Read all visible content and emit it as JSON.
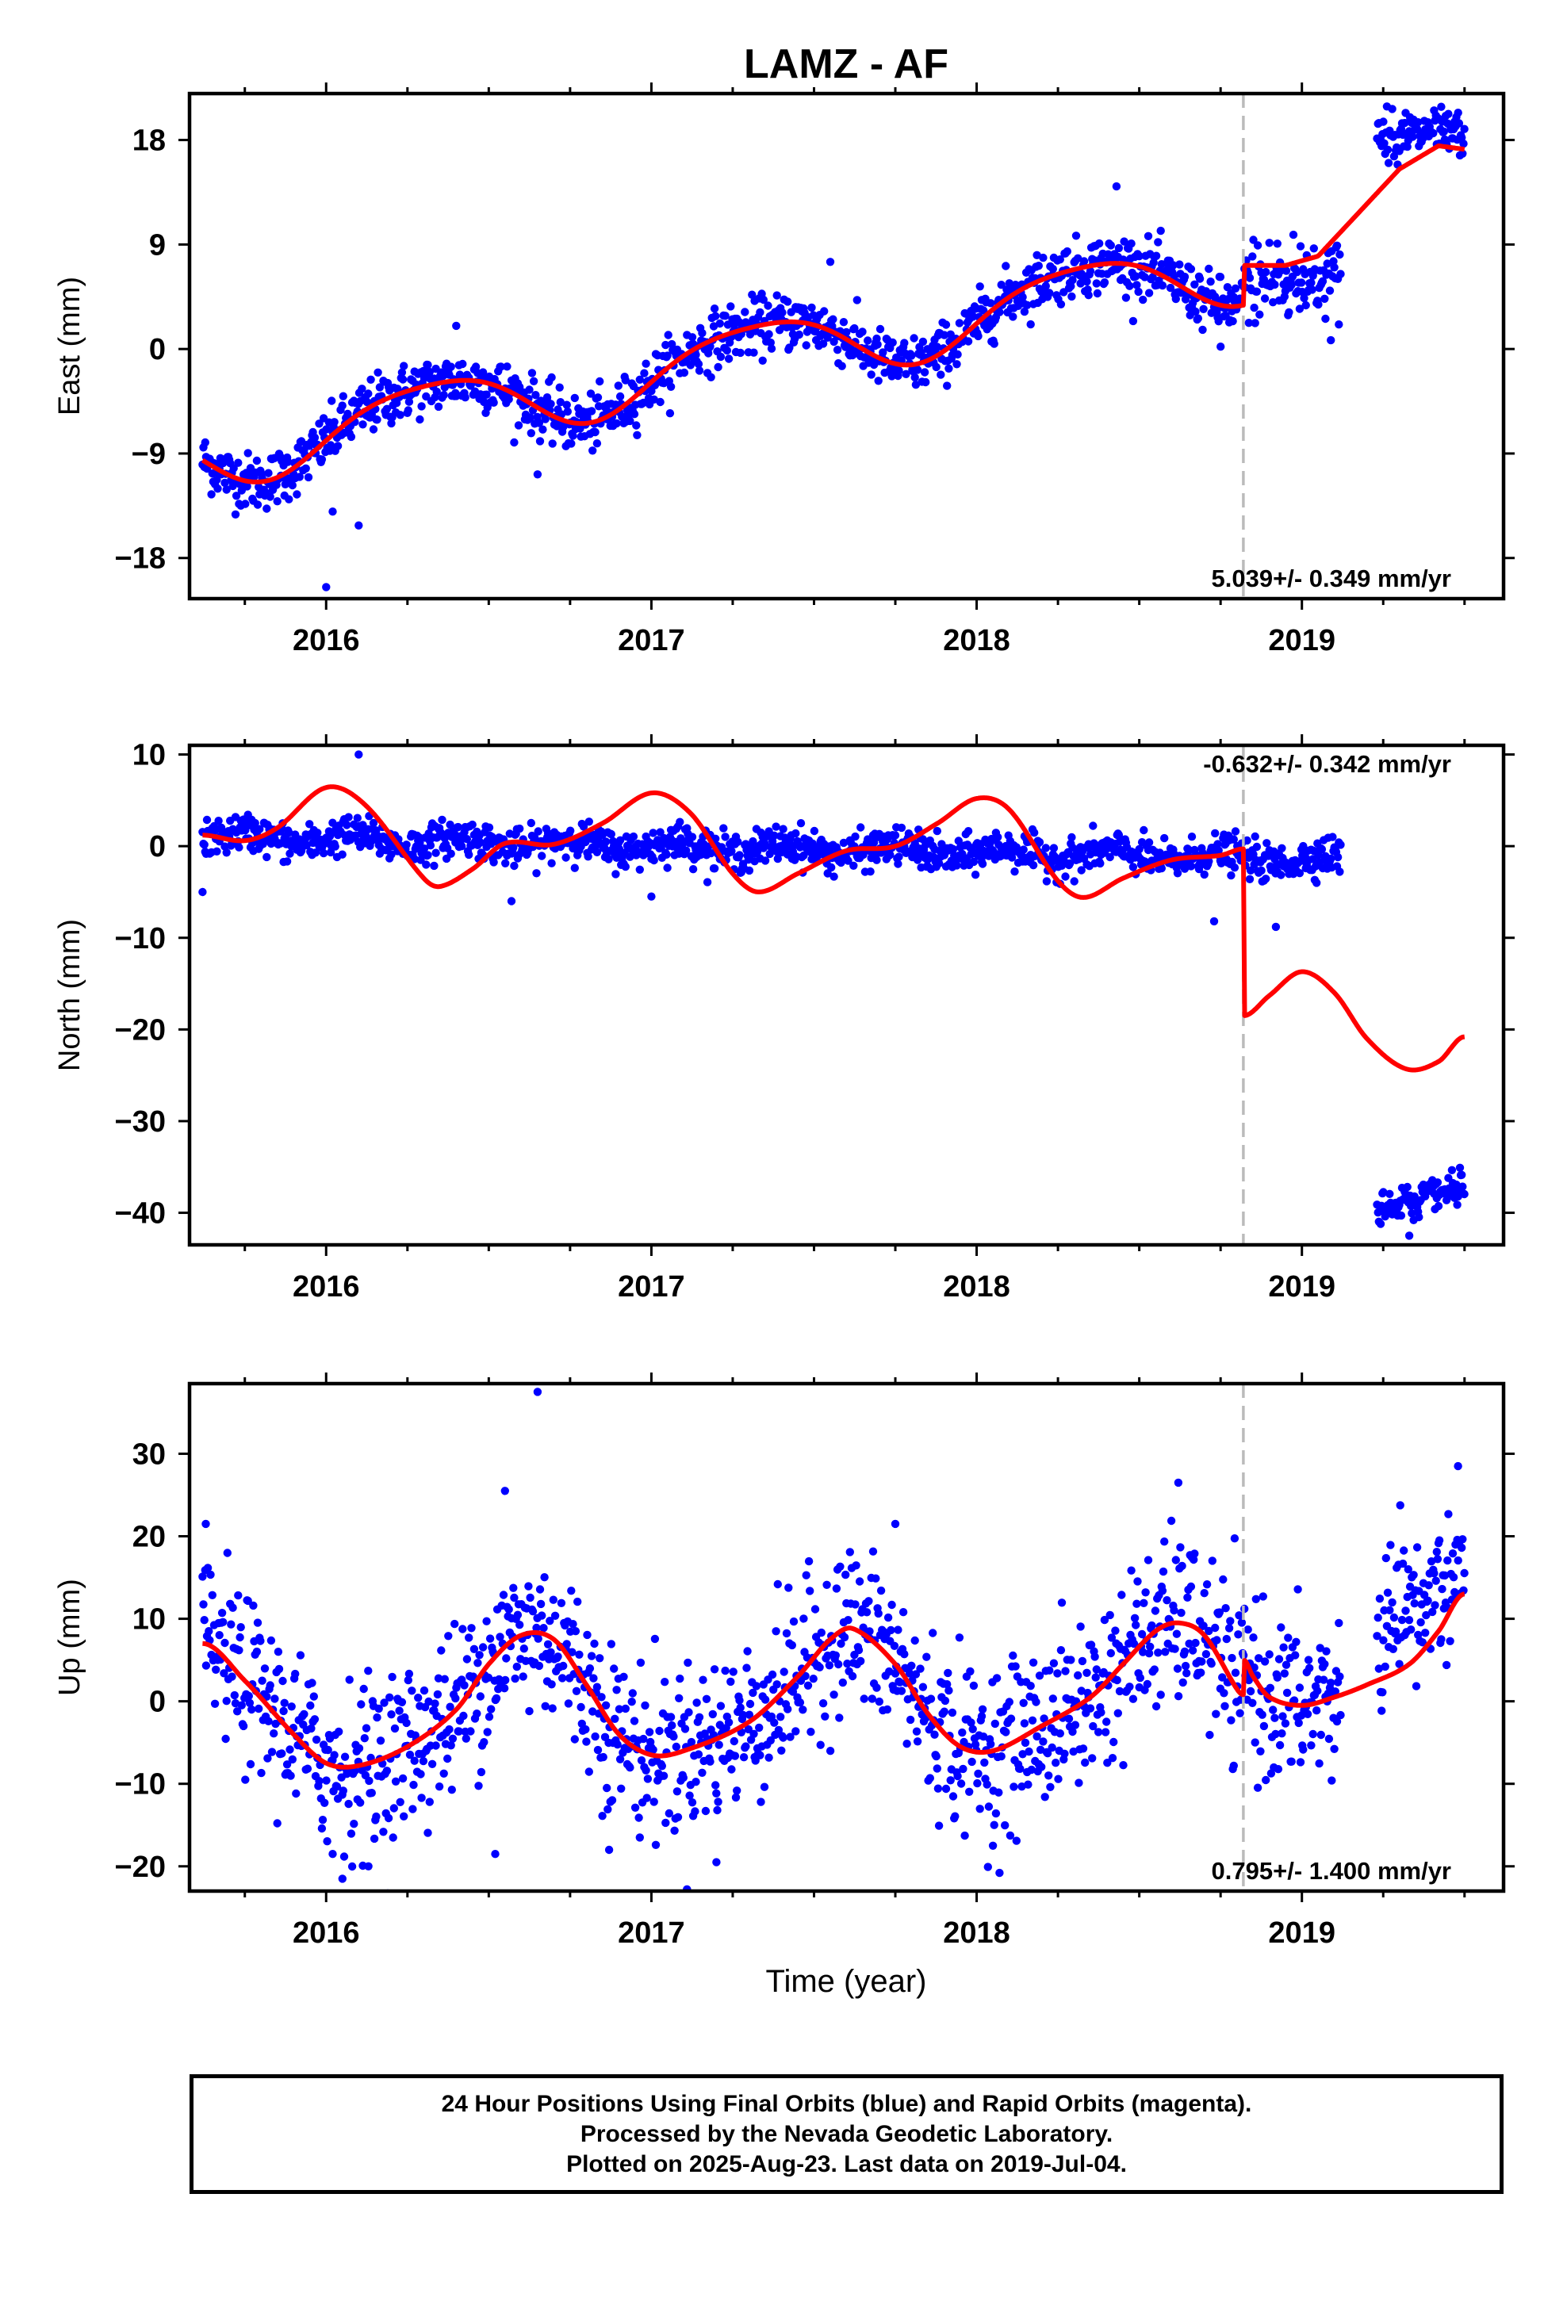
{
  "title": "LAMZ - AF",
  "xlabel": "Time (year)",
  "x_ticks": [
    "2016",
    "2017",
    "2018",
    "2019"
  ],
  "footer": {
    "line1": "24 Hour Positions Using Final Orbits (blue) and Rapid Orbits (magenta).",
    "line2": "Processed by the Nevada Geodetic Laboratory.",
    "line3": "Plotted on 2025-Aug-23. Last data on 2019-Jul-04."
  },
  "colors": {
    "points": "#0000ff",
    "model": "#ff0000",
    "offset_line": "#bbbbbb",
    "axes": "#000000"
  },
  "chart_data": [
    {
      "type": "scatter",
      "name": "east",
      "ylabel": "East (mm)",
      "y_ticks": [
        -18,
        -9,
        0,
        9,
        18
      ],
      "xlim": [
        2015.58,
        2019.62
      ],
      "ylim": [
        -21.5,
        22.0
      ],
      "rate_text": "5.039+/- 0.349 mm/yr",
      "rate_position": "bottom-right",
      "offset_epoch": 2018.82,
      "start": 2015.62,
      "end": 2019.5,
      "gap": [
        2019.12,
        2019.23
      ],
      "model": {
        "trend_start": -9.0,
        "rate": 5.039,
        "ann_c": -1.2,
        "ann_s": 2.6,
        "semi_c": 0.4,
        "semi_s": 0.3,
        "offset": 3.0,
        "post_offset_adjust": [
          [
            2018.82,
            7.2
          ],
          [
            2018.95,
            7.2
          ],
          [
            2019.05,
            8.0
          ],
          [
            2019.15,
            11.0
          ],
          [
            2019.3,
            15.5
          ],
          [
            2019.42,
            17.5
          ],
          [
            2019.5,
            17.2
          ]
        ]
      },
      "noise": 1.2,
      "outliers": [
        [
          2016.0,
          -20.5
        ],
        [
          2016.1,
          -15.2
        ],
        [
          2016.02,
          -14.0
        ],
        [
          2016.4,
          2.0
        ],
        [
          2018.43,
          14.0
        ],
        [
          2017.55,
          7.5
        ],
        [
          2016.65,
          -10.8
        ],
        [
          2018.75,
          0.2
        ]
      ]
    },
    {
      "type": "scatter",
      "name": "north",
      "ylabel": "North (mm)",
      "y_ticks": [
        -40,
        -30,
        -20,
        -10,
        0,
        10
      ],
      "xlim": [
        2015.58,
        2019.62
      ],
      "ylim": [
        -43.5,
        11.0
      ],
      "rate_text": "-0.632+/- 0.342 mm/yr",
      "rate_position": "top-right",
      "offset_epoch": 2018.82,
      "start": 2015.62,
      "end": 2019.5,
      "gap": [
        2019.12,
        2019.23
      ],
      "model_points": [
        [
          2015.62,
          1.2
        ],
        [
          2015.75,
          0.6
        ],
        [
          2015.85,
          2.0
        ],
        [
          2016.0,
          6.4
        ],
        [
          2016.12,
          4.5
        ],
        [
          2016.3,
          -3.5
        ],
        [
          2016.35,
          -4.4
        ],
        [
          2016.45,
          -2.5
        ],
        [
          2016.55,
          0.3
        ],
        [
          2016.7,
          0.2
        ],
        [
          2016.85,
          2.5
        ],
        [
          2017.0,
          5.8
        ],
        [
          2017.12,
          3.6
        ],
        [
          2017.25,
          -3.0
        ],
        [
          2017.33,
          -5.0
        ],
        [
          2017.45,
          -3.0
        ],
        [
          2017.6,
          -0.5
        ],
        [
          2017.75,
          0.0
        ],
        [
          2017.88,
          2.5
        ],
        [
          2018.0,
          5.2
        ],
        [
          2018.1,
          4.0
        ],
        [
          2018.25,
          -3.8
        ],
        [
          2018.33,
          -5.6
        ],
        [
          2018.45,
          -3.5
        ],
        [
          2018.6,
          -1.5
        ],
        [
          2018.75,
          -1.0
        ],
        [
          2018.82,
          -0.3
        ],
        [
          2018.821,
          -18.5
        ],
        [
          2018.9,
          -16.3
        ],
        [
          2019.0,
          -13.7
        ],
        [
          2019.1,
          -16.0
        ],
        [
          2019.2,
          -21.0
        ],
        [
          2019.32,
          -24.3
        ],
        [
          2019.42,
          -23.5
        ],
        [
          2019.5,
          -20.8
        ]
      ],
      "data_levels": [
        [
          2015.62,
          1.0
        ],
        [
          2019.12,
          -1.5
        ],
        [
          2019.23,
          -39.5
        ],
        [
          2019.5,
          -37.0
        ]
      ],
      "noise": 1.0,
      "outliers": [
        [
          2016.1,
          10.0
        ],
        [
          2018.73,
          -8.2
        ],
        [
          2018.92,
          -8.8
        ],
        [
          2017.0,
          -5.5
        ],
        [
          2016.57,
          -6.0
        ],
        [
          2015.62,
          -5.0
        ],
        [
          2019.33,
          -42.5
        ]
      ]
    },
    {
      "type": "scatter",
      "name": "up",
      "ylabel": "Up (mm)",
      "y_ticks": [
        -20,
        -10,
        0,
        10,
        20,
        30
      ],
      "xlim": [
        2015.58,
        2019.62
      ],
      "ylim": [
        -23.0,
        38.5
      ],
      "rate_text": "0.795+/- 1.400 mm/yr",
      "rate_position": "bottom-right",
      "offset_epoch": 2018.82,
      "start": 2015.62,
      "end": 2019.5,
      "gap": [
        2019.12,
        2019.23
      ],
      "model_points": [
        [
          2015.62,
          7.0
        ],
        [
          2015.75,
          2.5
        ],
        [
          2015.9,
          -4.0
        ],
        [
          2016.0,
          -7.5
        ],
        [
          2016.1,
          -7.8
        ],
        [
          2016.25,
          -5.5
        ],
        [
          2016.4,
          -1.0
        ],
        [
          2016.5,
          4.5
        ],
        [
          2016.6,
          8.0
        ],
        [
          2016.7,
          7.5
        ],
        [
          2016.8,
          2.0
        ],
        [
          2016.9,
          -4.0
        ],
        [
          2017.0,
          -6.5
        ],
        [
          2017.1,
          -6.0
        ],
        [
          2017.3,
          -2.5
        ],
        [
          2017.45,
          3.0
        ],
        [
          2017.55,
          7.5
        ],
        [
          2017.62,
          8.8
        ],
        [
          2017.75,
          4.5
        ],
        [
          2017.85,
          -1.5
        ],
        [
          2017.95,
          -5.5
        ],
        [
          2018.05,
          -6.0
        ],
        [
          2018.2,
          -3.0
        ],
        [
          2018.35,
          0.5
        ],
        [
          2018.45,
          4.5
        ],
        [
          2018.55,
          8.5
        ],
        [
          2018.62,
          9.5
        ],
        [
          2018.7,
          8.0
        ],
        [
          2018.8,
          1.5
        ],
        [
          2018.82,
          0.8
        ],
        [
          2018.821,
          5.0
        ],
        [
          2018.85,
          3.0
        ],
        [
          2018.9,
          0.5
        ],
        [
          2019.0,
          -0.5
        ],
        [
          2019.1,
          0.5
        ],
        [
          2019.2,
          2.0
        ],
        [
          2019.33,
          4.5
        ],
        [
          2019.42,
          8.5
        ],
        [
          2019.5,
          13.0
        ]
      ],
      "noise": 5.0,
      "outliers": [
        [
          2016.65,
          37.5
        ],
        [
          2016.05,
          -21.5
        ],
        [
          2016.02,
          -18.5
        ],
        [
          2016.52,
          -18.5
        ],
        [
          2016.87,
          -18.0
        ],
        [
          2017.2,
          -19.5
        ],
        [
          2018.05,
          -17.5
        ],
        [
          2016.13,
          -20.0
        ],
        [
          2016.55,
          25.5
        ],
        [
          2018.62,
          26.5
        ],
        [
          2019.48,
          28.5
        ],
        [
          2015.63,
          21.5
        ],
        [
          2017.75,
          21.5
        ]
      ]
    }
  ]
}
